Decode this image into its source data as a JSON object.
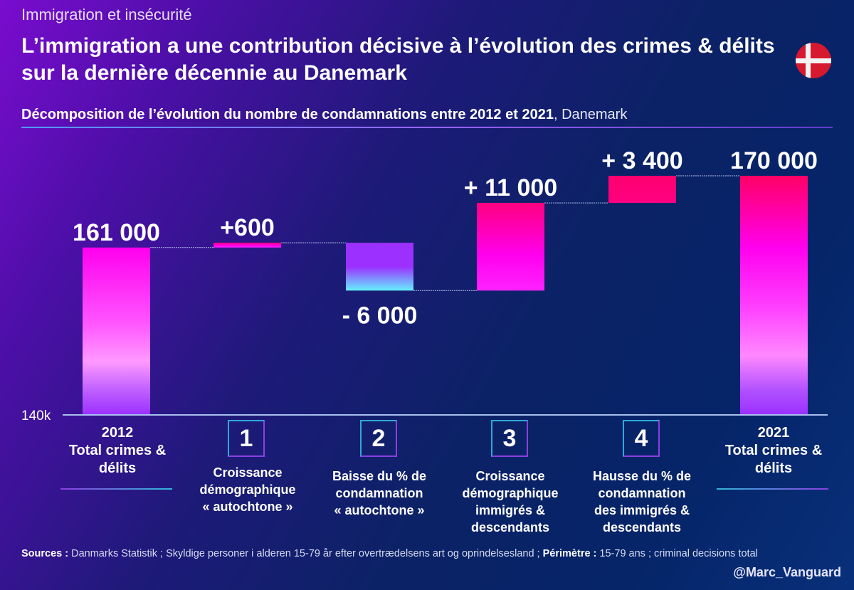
{
  "header": {
    "kicker": "Immigration et insécurité",
    "title": "L’immigration a une contribution décisive à l’évolution des crimes & délits sur la dernière décennie au Danemark",
    "subtitle_bold": "Décomposition de l’évolution du nombre de condamnations entre 2012 et 2021",
    "subtitle_rest": ", Danemark",
    "flag_icon": "denmark-flag-icon"
  },
  "colors": {
    "total_bar_top": "#ff00ee",
    "total_bar_bottom": "#9b30ff",
    "total_2021_top": "#ff0066",
    "increase_top": "#ff0080",
    "increase_bottom": "#ff22ff",
    "decrease_top": "#9b30ff",
    "decrease_bottom": "#66f0ff",
    "flag_red": "#d6192f"
  },
  "chart_data": {
    "type": "bar",
    "subtype": "waterfall",
    "title": "Décomposition de l’évolution du nombre de condamnations entre 2012 et 2021, Danemark",
    "xlabel": "",
    "ylabel": "",
    "ylim": [
      140000,
      175000
    ],
    "y_tick_labels": [
      "140k"
    ],
    "grid": false,
    "legend": "none",
    "categories": [
      "2012 Total crimes & délits",
      "1 Croissance démographique « autochtone »",
      "2 Baisse du % de condamnation « autochtone »",
      "3 Croissance démographique immigrés & descendants",
      "4 Hausse du % de condamnation des immigrés & descendants",
      "2021 Total crimes & délits"
    ],
    "values": [
      161000,
      600,
      -6000,
      11000,
      3400,
      170000
    ],
    "kinds": [
      "total",
      "delta",
      "delta",
      "delta",
      "delta",
      "total"
    ],
    "data_labels": [
      "161 000",
      "+600",
      "- 6 000",
      "+ 11 000",
      "+ 3 400",
      "170 000"
    ]
  },
  "categories_display": [
    {
      "year": "2012",
      "line1": "Total crimes &",
      "line2": "délits"
    },
    {
      "num": "1",
      "lines": [
        "Croissance",
        "démographique",
        "« autochtone »"
      ]
    },
    {
      "num": "2",
      "lines": [
        "Baisse du % de",
        "condamnation",
        "« autochtone »"
      ]
    },
    {
      "num": "3",
      "lines": [
        "Croissance",
        "démographique",
        "immigrés &",
        "descendants"
      ]
    },
    {
      "num": "4",
      "lines": [
        "Hausse du % de",
        "condamnation",
        "des immigrés &",
        "descendants"
      ]
    },
    {
      "year": "2021",
      "line1": "Total crimes &",
      "line2": "délits"
    }
  ],
  "footer": {
    "sources_label": "Sources :",
    "sources_text": " Danmarks Statistik ; Skyldige personer i alderen 15-79 år efter overtrædelsens art og oprindelsesland ; ",
    "perimetre_label": "Périmètre :",
    "perimetre_text": " 15-79 ans ; criminal decisions total",
    "handle": "@Marc_Vanguard"
  }
}
